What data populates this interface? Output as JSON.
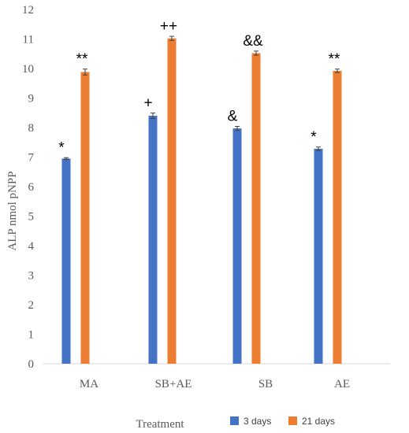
{
  "chart_data": {
    "type": "bar",
    "categories": [
      "MA",
      "SB+AE",
      "SB",
      "AE"
    ],
    "series": [
      {
        "name": "3 days",
        "color": "#4472C4",
        "values": [
          6.95,
          8.4,
          7.97,
          7.28
        ],
        "errors": [
          0.03,
          0.09,
          0.07,
          0.06
        ],
        "annotations": [
          "*",
          "+",
          "&",
          "*"
        ]
      },
      {
        "name": "21 days",
        "color": "#ED7D31",
        "values": [
          9.88,
          11.02,
          10.52,
          9.92
        ],
        "errors": [
          0.1,
          0.07,
          0.07,
          0.06
        ],
        "annotations": [
          "**",
          "++",
          "&&",
          "**"
        ]
      }
    ],
    "xlabel": "Treatment",
    "ylabel": "ALP nmol  pNPP",
    "ylim": [
      0,
      12
    ],
    "yticks": [
      "0",
      "1",
      "2",
      "3",
      "4",
      "5",
      "6",
      "7",
      "8",
      "9",
      "10",
      "11",
      "12"
    ],
    "grid": false,
    "legend": "bottom"
  }
}
